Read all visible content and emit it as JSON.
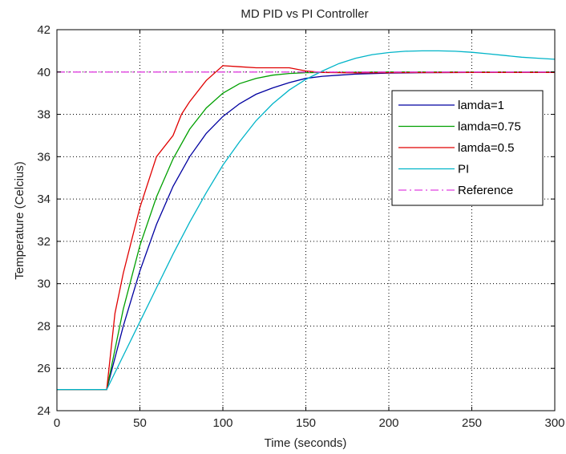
{
  "chart_data": {
    "type": "line",
    "title": "MD PID vs PI Controller",
    "xlabel": "Time (seconds)",
    "ylabel": "Temperature (Celcius)",
    "xlim": [
      0,
      300
    ],
    "ylim": [
      24,
      42
    ],
    "xticks": [
      0,
      50,
      100,
      150,
      200,
      250,
      300
    ],
    "yticks": [
      24,
      26,
      28,
      30,
      32,
      34,
      36,
      38,
      40,
      42
    ],
    "grid": true,
    "legend_position": "right",
    "series": [
      {
        "name": "lamda=1",
        "color": "#0000a0",
        "dash": "solid",
        "x": [
          0,
          30,
          40,
          50,
          60,
          70,
          80,
          90,
          100,
          110,
          120,
          130,
          140,
          150,
          160,
          170,
          180,
          200,
          220,
          250,
          300
        ],
        "y": [
          25,
          25,
          28.0,
          30.6,
          32.8,
          34.6,
          36.0,
          37.1,
          37.9,
          38.5,
          38.95,
          39.25,
          39.5,
          39.7,
          39.8,
          39.85,
          39.9,
          39.95,
          39.97,
          39.98,
          40.0
        ]
      },
      {
        "name": "lamda=0.75",
        "color": "#00a000",
        "dash": "solid",
        "x": [
          0,
          30,
          40,
          50,
          60,
          70,
          80,
          90,
          100,
          110,
          120,
          130,
          140,
          150,
          160,
          180,
          200,
          250,
          300
        ],
        "y": [
          25,
          25,
          28.8,
          31.8,
          34.1,
          35.9,
          37.3,
          38.3,
          39.0,
          39.45,
          39.7,
          39.85,
          39.93,
          39.97,
          39.98,
          39.99,
          40.0,
          40.0,
          40.0
        ]
      },
      {
        "name": "lamda=0.5",
        "color": "#e00000",
        "dash": "solid",
        "x": [
          0,
          30,
          35,
          40,
          50,
          60,
          70,
          75,
          80,
          90,
          100,
          110,
          120,
          130,
          140,
          150,
          160,
          180,
          200,
          250,
          300
        ],
        "y": [
          25,
          25,
          28.6,
          30.5,
          33.6,
          36.0,
          37.0,
          38.0,
          38.6,
          39.6,
          40.3,
          40.25,
          40.2,
          40.2,
          40.2,
          40.05,
          39.98,
          39.96,
          39.97,
          39.98,
          39.98
        ]
      },
      {
        "name": "PI",
        "color": "#00b4c8",
        "dash": "solid",
        "x": [
          0,
          30,
          40,
          50,
          60,
          70,
          80,
          90,
          100,
          110,
          120,
          130,
          140,
          150,
          160,
          170,
          180,
          190,
          200,
          210,
          220,
          230,
          240,
          250,
          260,
          270,
          280,
          290,
          300
        ],
        "y": [
          25,
          25,
          26.6,
          28.2,
          29.8,
          31.4,
          32.9,
          34.3,
          35.6,
          36.7,
          37.7,
          38.5,
          39.15,
          39.65,
          40.05,
          40.4,
          40.65,
          40.82,
          40.92,
          40.98,
          41.0,
          41.0,
          40.98,
          40.93,
          40.86,
          40.78,
          40.7,
          40.65,
          40.6
        ]
      },
      {
        "name": "Reference",
        "color": "#e040e0",
        "dash": "dashdot",
        "x": [
          0,
          300
        ],
        "y": [
          40,
          40
        ]
      }
    ]
  }
}
